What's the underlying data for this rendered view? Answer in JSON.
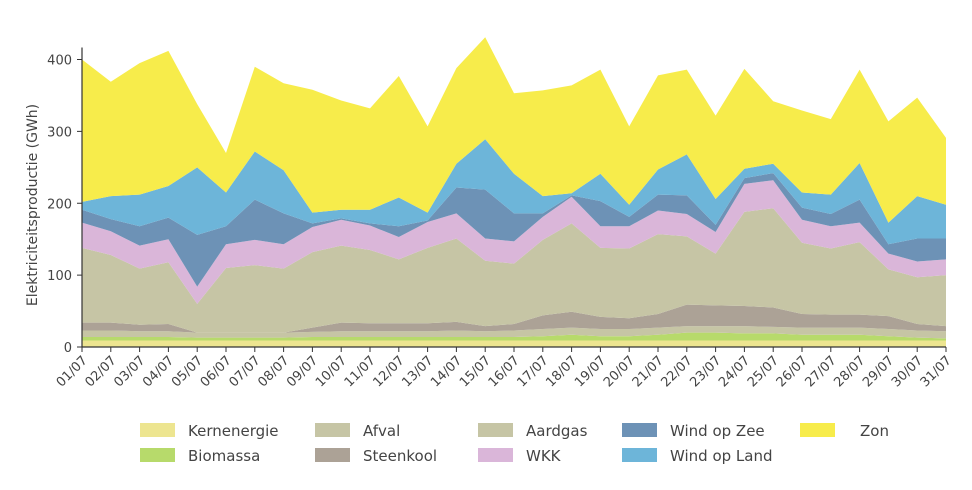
{
  "chart_data": {
    "type": "area",
    "stacked": true,
    "title": "",
    "xlabel": "",
    "ylabel": "Elektriciteitsproductie (GWh)",
    "ylim": [
      0,
      400
    ],
    "yticks": [
      0,
      100,
      200,
      300,
      400
    ],
    "grid": false,
    "legend_position": "bottom",
    "categories": [
      "01/07",
      "02/07",
      "03/07",
      "04/07",
      "05/07",
      "06/07",
      "07/07",
      "08/07",
      "09/07",
      "10/07",
      "11/07",
      "12/07",
      "13/07",
      "14/07",
      "15/07",
      "16/07",
      "17/07",
      "18/07",
      "19/07",
      "20/07",
      "21/07",
      "22/07",
      "23/07",
      "24/07",
      "25/07",
      "26/07",
      "27/07",
      "28/07",
      "29/07",
      "30/07",
      "31/07"
    ],
    "series": [
      {
        "name": "Kernenergie",
        "color": "#ede590",
        "values": [
          9,
          9,
          9,
          9,
          9,
          9,
          9,
          9,
          9,
          9,
          9,
          9,
          9,
          9,
          9,
          9,
          9,
          9,
          9,
          9,
          9,
          9,
          9,
          9,
          9,
          9,
          9,
          9,
          9,
          9,
          9
        ]
      },
      {
        "name": "Biomassa",
        "color": "#b7da6b",
        "values": [
          5,
          5,
          5,
          5,
          4,
          4,
          4,
          4,
          5,
          5,
          5,
          5,
          5,
          5,
          5,
          5,
          6,
          8,
          6,
          6,
          8,
          11,
          11,
          10,
          10,
          8,
          8,
          8,
          6,
          4,
          3
        ]
      },
      {
        "name": "Afval",
        "color": "#c6c5a5",
        "values": [
          9,
          9,
          8,
          8,
          7,
          7,
          7,
          7,
          7,
          8,
          8,
          8,
          8,
          9,
          8,
          9,
          10,
          10,
          10,
          10,
          10,
          9,
          9,
          10,
          9,
          10,
          10,
          10,
          10,
          10,
          10
        ]
      },
      {
        "name": "Steenkool",
        "color": "#aca296",
        "values": [
          11,
          11,
          9,
          10,
          0,
          0,
          0,
          0,
          6,
          12,
          11,
          11,
          11,
          12,
          7,
          9,
          19,
          22,
          17,
          15,
          19,
          30,
          29,
          28,
          27,
          19,
          18,
          18,
          18,
          9,
          7
        ]
      },
      {
        "name": "Aardgas",
        "color": "#c6c5a5",
        "values": [
          104,
          94,
          78,
          86,
          40,
          90,
          94,
          89,
          105,
          107,
          102,
          89,
          105,
          116,
          91,
          84,
          105,
          123,
          96,
          97,
          111,
          95,
          72,
          131,
          138,
          99,
          92,
          101,
          65,
          65,
          71
        ]
      },
      {
        "name": "WKK",
        "color": "#dab6d9",
        "values": [
          35,
          33,
          32,
          32,
          24,
          33,
          35,
          34,
          35,
          36,
          34,
          31,
          36,
          35,
          31,
          31,
          32,
          37,
          30,
          31,
          33,
          31,
          30,
          39,
          39,
          32,
          31,
          27,
          22,
          22,
          22
        ]
      },
      {
        "name": "Wind op Zee",
        "color": "#6d92b6",
        "values": [
          18,
          17,
          27,
          30,
          72,
          25,
          56,
          43,
          5,
          2,
          3,
          15,
          2,
          36,
          68,
          39,
          5,
          2,
          35,
          13,
          22,
          26,
          10,
          8,
          10,
          17,
          17,
          32,
          13,
          32,
          29
        ]
      },
      {
        "name": "Wind op Land",
        "color": "#6db5d9",
        "values": [
          11,
          32,
          44,
          44,
          94,
          47,
          67,
          60,
          15,
          12,
          19,
          40,
          11,
          33,
          70,
          55,
          24,
          3,
          38,
          17,
          35,
          57,
          36,
          13,
          13,
          21,
          27,
          51,
          30,
          59,
          47
        ]
      },
      {
        "name": "Zon",
        "color": "#f7ec4b",
        "values": [
          198,
          159,
          183,
          188,
          88,
          55,
          118,
          121,
          171,
          152,
          141,
          169,
          120,
          133,
          142,
          112,
          147,
          150,
          145,
          109,
          131,
          118,
          116,
          139,
          87,
          114,
          105,
          130,
          141,
          137,
          93
        ]
      }
    ],
    "legend_order": [
      "Kernenergie",
      "Biomassa",
      "Afval",
      "Steenkool",
      "Aardgas",
      "WKK",
      "Wind op Zee",
      "Wind op Land",
      "Zon"
    ]
  }
}
